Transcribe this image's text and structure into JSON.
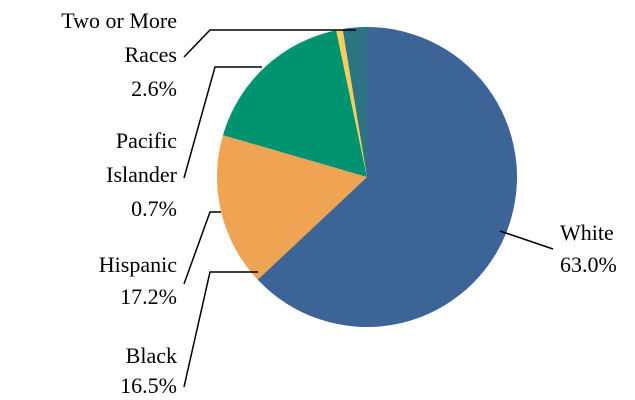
{
  "chart_data": {
    "type": "pie",
    "title": "",
    "start_angle_deg": 0,
    "direction": "clockwise",
    "slices": [
      {
        "label_lines": [
          "White"
        ],
        "value_label": "63.0%",
        "value": 63.0,
        "color": "#3c6496"
      },
      {
        "label_lines": [
          "Black"
        ],
        "value_label": "16.5%",
        "value": 16.5,
        "color": "#eea452"
      },
      {
        "label_lines": [
          "Hispanic"
        ],
        "value_label": "17.2%",
        "value": 17.2,
        "color": "#009370"
      },
      {
        "label_lines": [
          "Pacific",
          "Islander"
        ],
        "value_label": "0.7%",
        "value": 0.7,
        "color": "#f5cf57"
      },
      {
        "label_lines": [
          "Two or More",
          "Races"
        ],
        "value_label": "2.6%",
        "value": 2.6,
        "color": "#2b7484"
      }
    ]
  }
}
